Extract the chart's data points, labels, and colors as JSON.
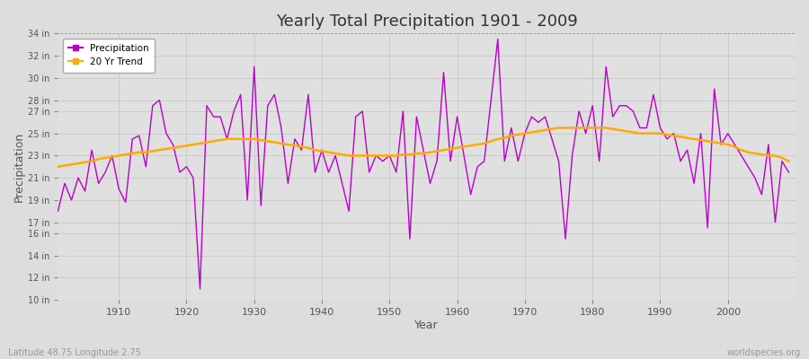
{
  "title": "Yearly Total Precipitation 1901 - 2009",
  "xlabel": "Year",
  "ylabel": "Precipitation",
  "subtitle_left": "Latitude 48.75 Longitude 2.75",
  "subtitle_right": "worldspecies.org",
  "precipitation_color": "#bb00cc",
  "trend_color": "#ffaa00",
  "bg_color": "#dddddd",
  "plot_bg_color": "#e0e0e0",
  "ylim": [
    10,
    34
  ],
  "yticks": [
    10,
    12,
    14,
    16,
    17,
    19,
    21,
    23,
    25,
    27,
    28,
    30,
    32,
    34
  ],
  "xticks": [
    1910,
    1920,
    1930,
    1940,
    1950,
    1960,
    1970,
    1980,
    1990,
    2000
  ],
  "years": [
    1901,
    1902,
    1903,
    1904,
    1905,
    1906,
    1907,
    1908,
    1909,
    1910,
    1911,
    1912,
    1913,
    1914,
    1915,
    1916,
    1917,
    1918,
    1919,
    1920,
    1921,
    1922,
    1923,
    1924,
    1925,
    1926,
    1927,
    1928,
    1929,
    1930,
    1931,
    1932,
    1933,
    1934,
    1935,
    1936,
    1937,
    1938,
    1939,
    1940,
    1941,
    1942,
    1943,
    1944,
    1945,
    1946,
    1947,
    1948,
    1949,
    1950,
    1951,
    1952,
    1953,
    1954,
    1955,
    1956,
    1957,
    1958,
    1959,
    1960,
    1961,
    1962,
    1963,
    1964,
    1965,
    1966,
    1967,
    1968,
    1969,
    1970,
    1971,
    1972,
    1973,
    1974,
    1975,
    1976,
    1977,
    1978,
    1979,
    1980,
    1981,
    1982,
    1983,
    1984,
    1985,
    1986,
    1987,
    1988,
    1989,
    1990,
    1991,
    1992,
    1993,
    1994,
    1995,
    1996,
    1997,
    1998,
    1999,
    2000,
    2001,
    2002,
    2003,
    2004,
    2005,
    2006,
    2007,
    2008,
    2009
  ],
  "precip": [
    18.0,
    20.5,
    19.0,
    21.0,
    19.8,
    23.5,
    20.5,
    21.5,
    23.0,
    20.0,
    18.8,
    24.5,
    24.8,
    22.0,
    27.5,
    28.0,
    25.0,
    24.0,
    21.5,
    22.0,
    21.0,
    11.0,
    27.5,
    26.5,
    26.5,
    24.5,
    27.0,
    28.5,
    19.0,
    31.0,
    18.5,
    27.5,
    28.5,
    25.5,
    20.5,
    24.5,
    23.5,
    28.5,
    21.5,
    23.5,
    21.5,
    23.0,
    20.5,
    18.0,
    26.5,
    27.0,
    21.5,
    23.0,
    22.5,
    23.0,
    21.5,
    27.0,
    15.5,
    26.5,
    23.5,
    20.5,
    22.5,
    30.5,
    22.5,
    26.5,
    23.0,
    19.5,
    22.0,
    22.5,
    28.0,
    33.5,
    22.5,
    25.5,
    22.5,
    25.0,
    26.5,
    26.0,
    26.5,
    24.5,
    22.5,
    15.5,
    23.0,
    27.0,
    25.0,
    27.5,
    22.5,
    31.0,
    26.5,
    27.5,
    27.5,
    27.0,
    25.5,
    25.5,
    28.5,
    25.5,
    24.5,
    25.0,
    22.5,
    23.5,
    20.5,
    25.0,
    16.5,
    29.0,
    24.0,
    25.0,
    24.0,
    23.0,
    22.0,
    21.0,
    19.5,
    24.0,
    17.0,
    22.5,
    21.5
  ],
  "trend": [
    22.0,
    22.1,
    22.2,
    22.3,
    22.4,
    22.5,
    22.7,
    22.8,
    22.9,
    23.0,
    23.1,
    23.2,
    23.3,
    23.3,
    23.4,
    23.5,
    23.6,
    23.7,
    23.8,
    23.9,
    24.0,
    24.1,
    24.2,
    24.3,
    24.4,
    24.5,
    24.5,
    24.5,
    24.5,
    24.5,
    24.4,
    24.3,
    24.2,
    24.1,
    24.0,
    23.9,
    23.8,
    23.7,
    23.5,
    23.4,
    23.3,
    23.2,
    23.1,
    23.0,
    23.0,
    23.0,
    23.0,
    23.0,
    23.0,
    23.0,
    23.0,
    23.1,
    23.1,
    23.2,
    23.2,
    23.3,
    23.4,
    23.5,
    23.6,
    23.7,
    23.8,
    23.9,
    24.0,
    24.1,
    24.3,
    24.5,
    24.6,
    24.8,
    24.9,
    25.0,
    25.1,
    25.2,
    25.3,
    25.4,
    25.5,
    25.5,
    25.5,
    25.5,
    25.5,
    25.5,
    25.5,
    25.5,
    25.4,
    25.3,
    25.2,
    25.1,
    25.0,
    25.0,
    25.0,
    25.0,
    24.9,
    24.8,
    24.7,
    24.6,
    24.5,
    24.4,
    24.3,
    24.2,
    24.1,
    24.0,
    23.8,
    23.5,
    23.3,
    23.2,
    23.1,
    23.0,
    23.0,
    22.8,
    22.5
  ]
}
